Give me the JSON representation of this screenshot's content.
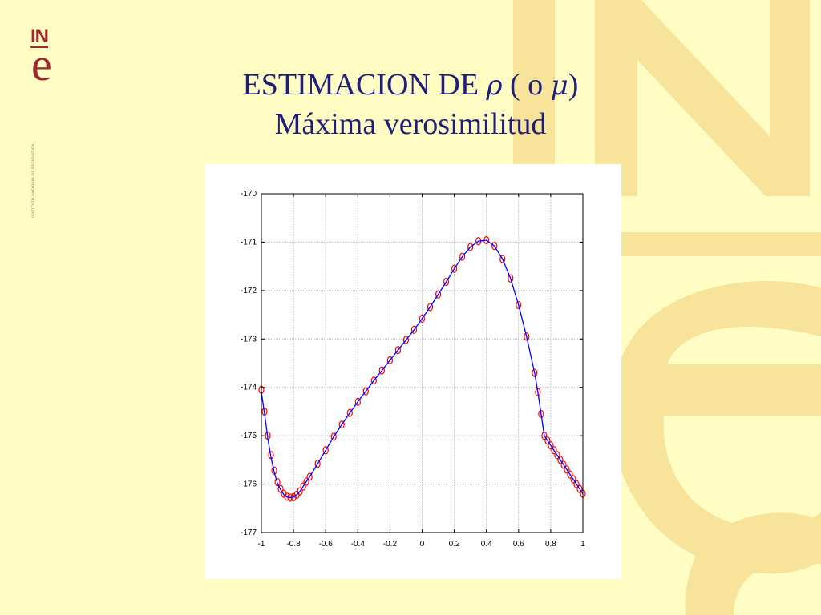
{
  "slide": {
    "title_line1_prefix": "ESTIMACION DE ",
    "rho_symbol": "ρ",
    "title_line1_middle": " ( o ",
    "mu_symbol": "μ",
    "title_line1_suffix": ")",
    "title_line2": "Máxima verosimilitud",
    "logo_text_in": "IN",
    "logo_text_e": "e",
    "vertical_caption": "INSTITUTO NACIONAL DE ESTADISTICA",
    "colors": {
      "background": "#FFFDC4",
      "watermark": "#F7E49A",
      "logo": "#A0262F",
      "title": "#1F1F7A",
      "curve": "#0000FF",
      "markers": "#FF0000"
    }
  },
  "chart_data": {
    "type": "line",
    "title": "",
    "xlabel": "",
    "ylabel": "",
    "xlim": [
      -1,
      1
    ],
    "ylim": [
      -177,
      -170
    ],
    "grid": true,
    "x_ticks": [
      -1,
      -0.8,
      -0.6,
      -0.4,
      -0.2,
      0,
      0.2,
      0.4,
      0.6,
      0.8,
      1
    ],
    "x_tick_labels": [
      "-1",
      "-0.8",
      "-0.6",
      "-0.4",
      "-0.2",
      "0",
      "0.2",
      "0.4",
      "0.6",
      "0.8",
      "1"
    ],
    "y_ticks": [
      -170,
      -171,
      -172,
      -173,
      -174,
      -175,
      -176,
      -177
    ],
    "y_tick_labels": [
      "-170",
      "-171",
      "-172",
      "-173",
      "-174",
      "-175",
      "-176",
      "-177"
    ],
    "series": [
      {
        "style": "line",
        "color": "#0000FF",
        "x": [
          -1,
          -0.98,
          -0.96,
          -0.94,
          -0.92,
          -0.9,
          -0.88,
          -0.86,
          -0.84,
          -0.82,
          -0.8,
          -0.78,
          -0.76,
          -0.74,
          -0.72,
          -0.7,
          -0.65,
          -0.6,
          -0.55,
          -0.5,
          -0.45,
          -0.4,
          -0.35,
          -0.3,
          -0.25,
          -0.2,
          -0.15,
          -0.1,
          -0.05,
          0,
          0.05,
          0.1,
          0.15,
          0.2,
          0.25,
          0.3,
          0.35,
          0.4,
          0.45,
          0.5,
          0.55,
          0.6,
          0.65,
          0.7,
          0.72,
          0.74,
          0.76,
          0.78,
          0.8,
          0.82,
          0.84,
          0.86,
          0.88,
          0.9,
          0.92,
          0.94,
          0.96,
          0.98,
          1
        ],
        "y": [
          -174.1,
          -174.55,
          -175.05,
          -175.45,
          -175.75,
          -175.98,
          -176.12,
          -176.22,
          -176.27,
          -176.28,
          -176.27,
          -176.22,
          -176.15,
          -176.05,
          -175.95,
          -175.85,
          -175.58,
          -175.3,
          -175.02,
          -174.77,
          -174.53,
          -174.3,
          -174.08,
          -173.86,
          -173.65,
          -173.44,
          -173.23,
          -173.02,
          -172.81,
          -172.58,
          -172.34,
          -172.08,
          -171.82,
          -171.55,
          -171.3,
          -171.1,
          -170.98,
          -170.96,
          -171.08,
          -171.35,
          -171.75,
          -172.3,
          -172.95,
          -173.7,
          -174.1,
          -174.55,
          -175,
          -175.1,
          -175.2,
          -175.3,
          -175.4,
          -175.5,
          -175.6,
          -175.7,
          -175.8,
          -175.9,
          -176,
          -176.1,
          -176.2
        ],
        "note_points": "pairs are (x, y) in axis units"
      },
      {
        "style": "markers",
        "marker": "o",
        "color": "#FF0000",
        "x": [
          -1,
          -0.98,
          -0.96,
          -0.94,
          -0.92,
          -0.9,
          -0.88,
          -0.86,
          -0.84,
          -0.82,
          -0.8,
          -0.78,
          -0.76,
          -0.74,
          -0.72,
          -0.7,
          -0.65,
          -0.6,
          -0.55,
          -0.5,
          -0.45,
          -0.4,
          -0.35,
          -0.3,
          -0.25,
          -0.2,
          -0.15,
          -0.1,
          -0.05,
          0,
          0.05,
          0.1,
          0.15,
          0.2,
          0.25,
          0.3,
          0.35,
          0.4,
          0.45,
          0.5,
          0.55,
          0.6,
          0.65,
          0.7,
          0.72,
          0.74,
          0.76,
          0.78,
          0.8,
          0.82,
          0.84,
          0.86,
          0.88,
          0.9,
          0.92,
          0.94,
          0.96,
          0.98,
          1
        ],
        "y": [
          -174.05,
          -174.5,
          -175,
          -175.4,
          -175.72,
          -175.96,
          -176.1,
          -176.2,
          -176.26,
          -176.28,
          -176.27,
          -176.22,
          -176.15,
          -176.05,
          -175.95,
          -175.85,
          -175.58,
          -175.3,
          -175.02,
          -174.77,
          -174.53,
          -174.3,
          -174.08,
          -173.86,
          -173.65,
          -173.44,
          -173.23,
          -173.02,
          -172.81,
          -172.58,
          -172.34,
          -172.08,
          -171.82,
          -171.55,
          -171.3,
          -171.1,
          -170.98,
          -170.96,
          -171.08,
          -171.35,
          -171.75,
          -172.3,
          -172.95,
          -173.7,
          -174.1,
          -174.55,
          -175,
          -175.1,
          -175.2,
          -175.3,
          -175.4,
          -175.5,
          -175.6,
          -175.7,
          -175.8,
          -175.9,
          -176,
          -176.1,
          -176.2
        ]
      }
    ]
  }
}
